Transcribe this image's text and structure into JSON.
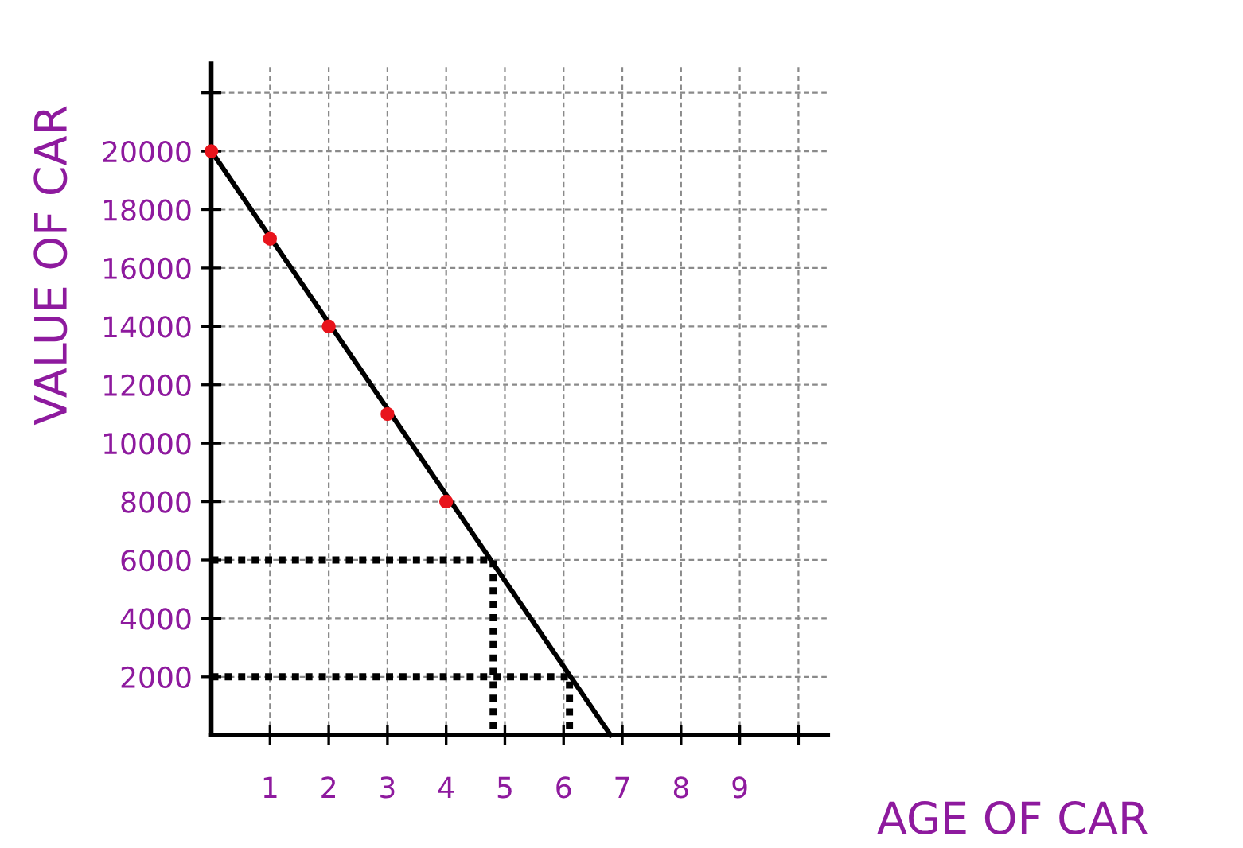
{
  "chart_data": {
    "type": "line",
    "xlabel": "AGE OF CAR",
    "ylabel": "VALUE OF CAR",
    "xlim": [
      0,
      10.5
    ],
    "ylim": [
      0,
      23000
    ],
    "xticks": [
      1,
      2,
      3,
      4,
      5,
      6,
      7,
      8,
      9,
      {
        "value": 10,
        "label": null
      }
    ],
    "yticks": [
      2000,
      4000,
      6000,
      8000,
      10000,
      12000,
      14000,
      16000,
      18000,
      20000,
      {
        "value": 22000,
        "label": null
      }
    ],
    "grid": true,
    "series": [
      {
        "color": "#000000",
        "x": [
          0,
          6.8
        ],
        "values": [
          20000,
          0
        ],
        "line_style": "solid",
        "marker": "none"
      },
      {
        "type": "scatter",
        "color": "#e8141c",
        "x": [
          0,
          1,
          2,
          3,
          4
        ],
        "values": [
          20000,
          17000,
          14000,
          11000,
          8000
        ],
        "marker": "circle"
      },
      {
        "color": "#000000",
        "x": [
          0,
          4.8,
          4.8
        ],
        "values": [
          6000,
          6000,
          0
        ],
        "line_style": "dotted",
        "marker": "none"
      },
      {
        "color": "#000000",
        "x": [
          0,
          6.1,
          6.1
        ],
        "values": [
          2000,
          2000,
          0
        ],
        "line_style": "dotted",
        "marker": "none"
      }
    ]
  }
}
